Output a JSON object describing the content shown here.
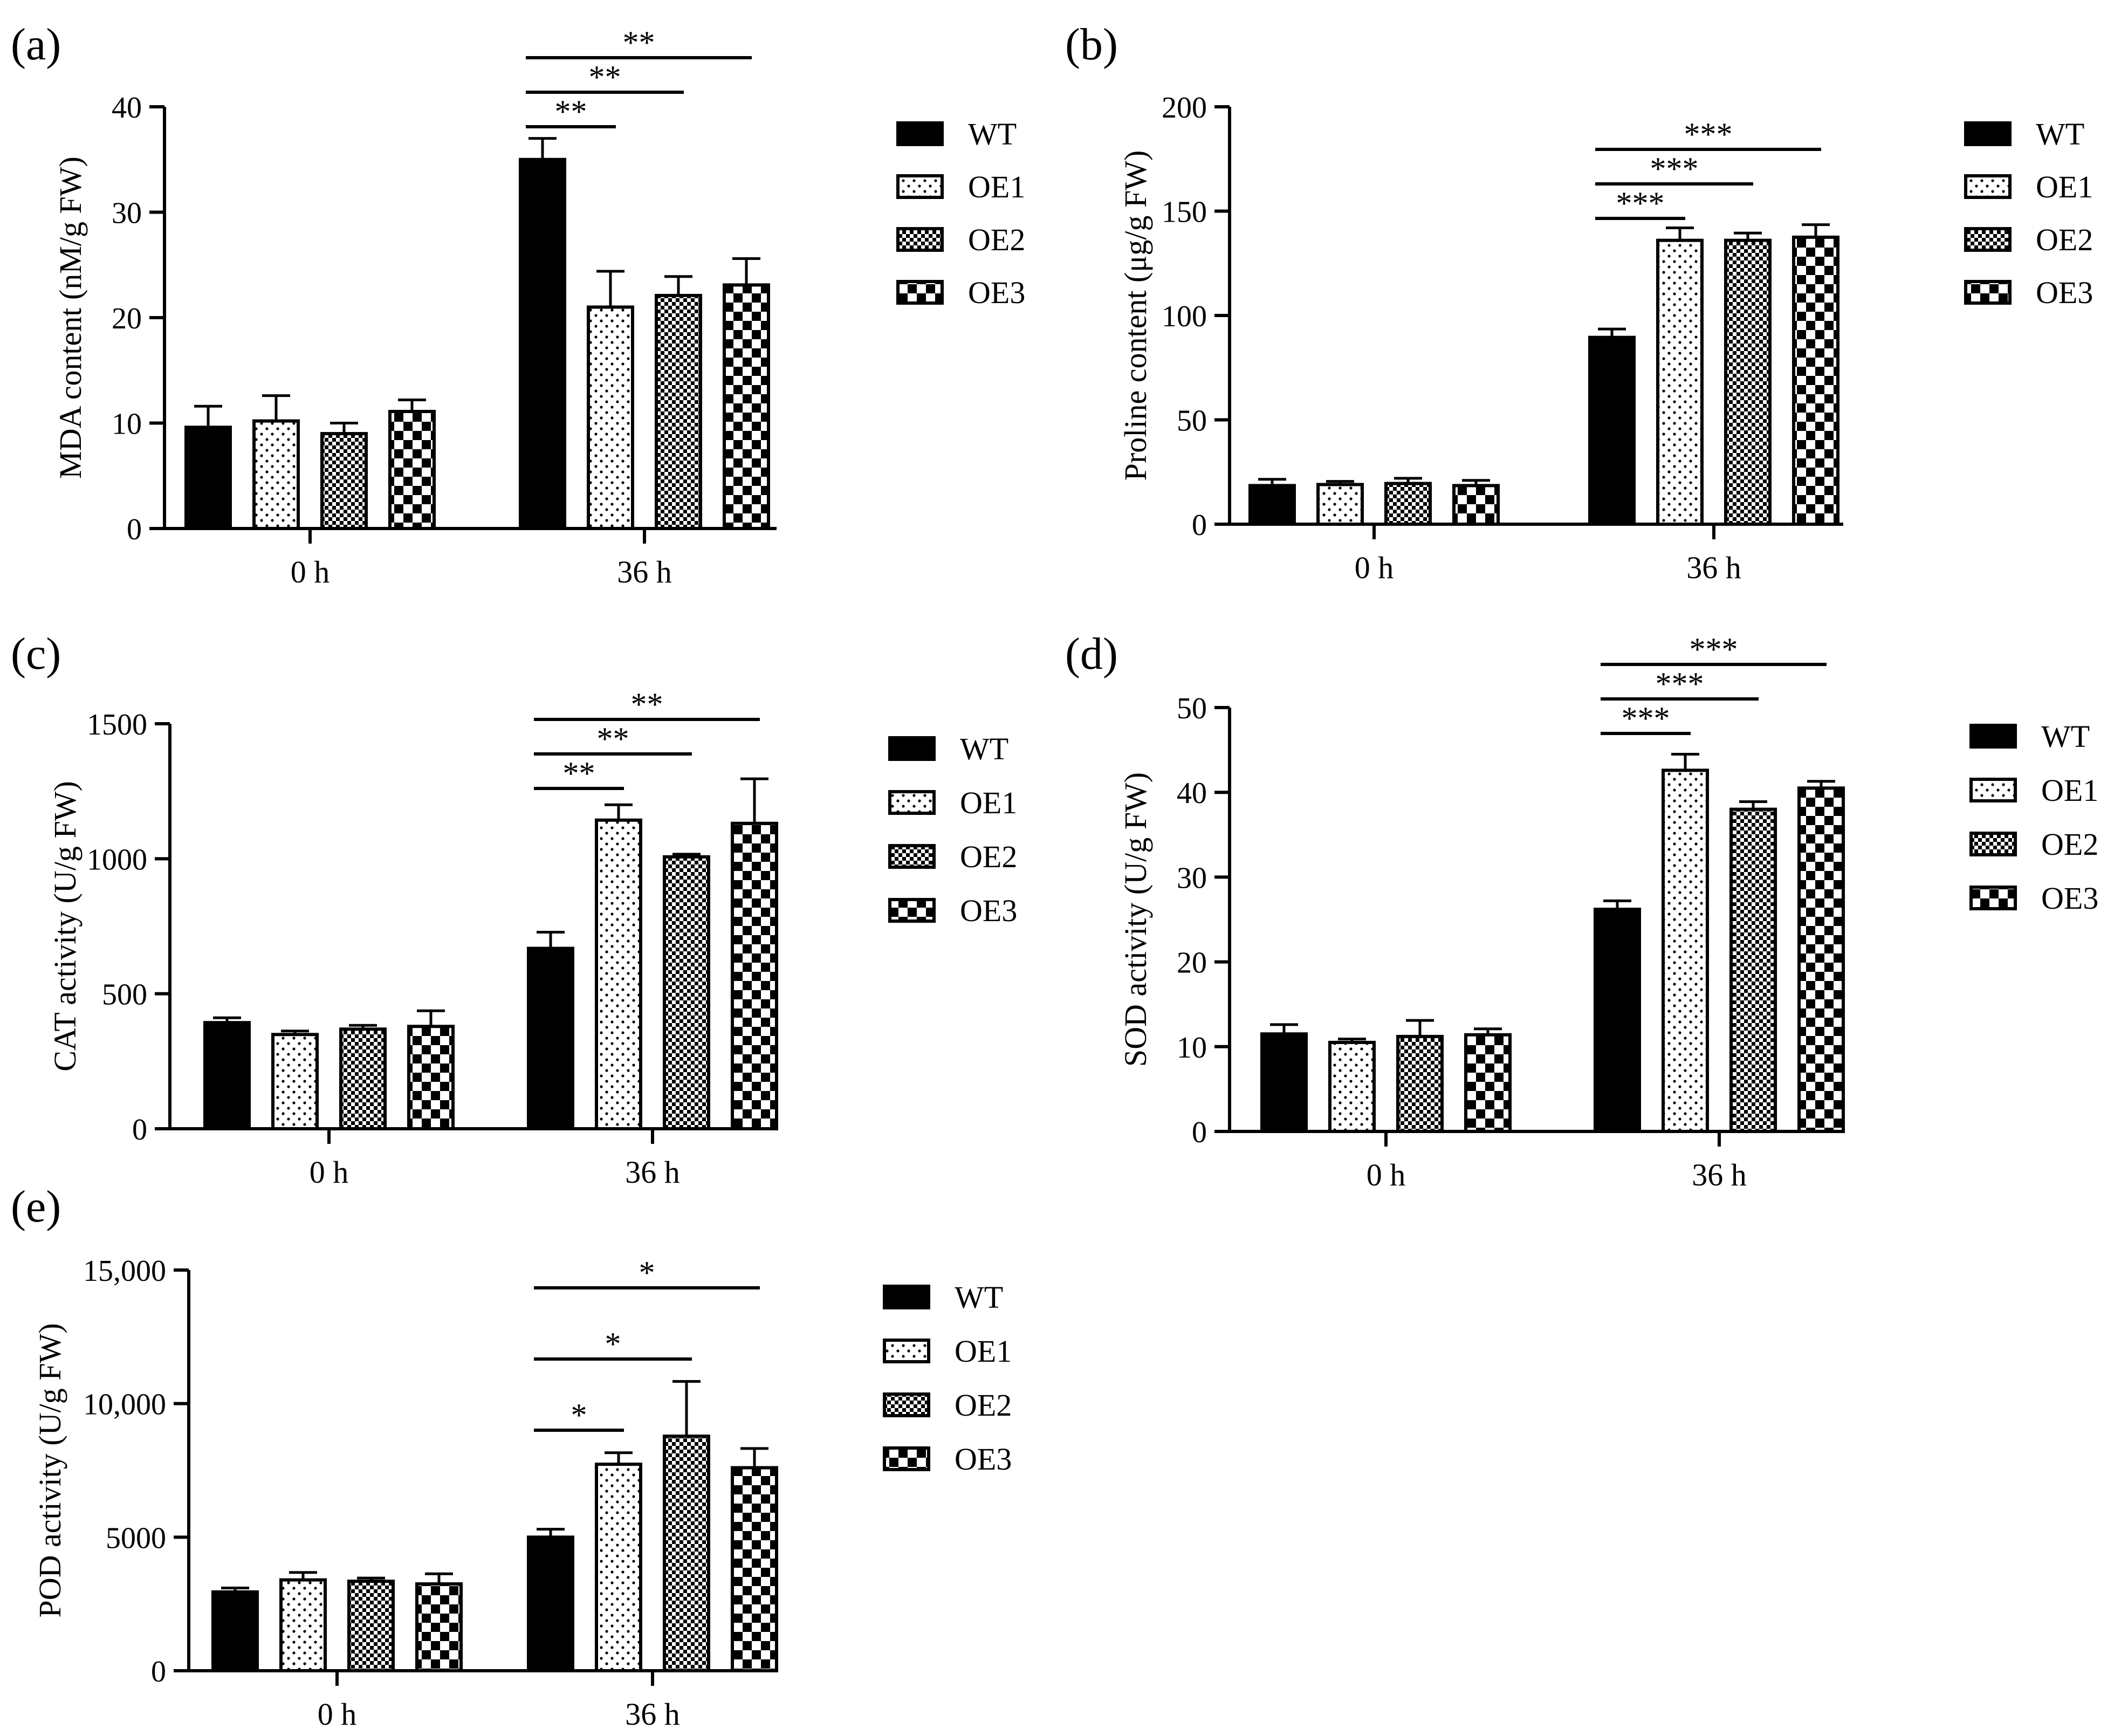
{
  "patterns": {
    "WT": "solid",
    "OE1": "dots",
    "OE2": "fine-checker",
    "OE3": "large-checker"
  },
  "colors": {
    "ink": "#000000",
    "background": "#ffffff"
  },
  "chart_data": [
    {
      "panel": "(a)",
      "type": "bar",
      "categories": [
        "0 h",
        "36 h"
      ],
      "ylabel": "MDA content (nM/g FW)",
      "ylim": [
        0,
        40
      ],
      "yticks": [
        0,
        10,
        20,
        30,
        40
      ],
      "ytick_labels": [
        "0",
        "10",
        "20",
        "30",
        "40"
      ],
      "series": [
        {
          "name": "WT",
          "values": [
            9.6,
            35.0
          ],
          "errors": [
            2.0,
            2.0
          ]
        },
        {
          "name": "OE1",
          "values": [
            10.2,
            21.0
          ],
          "errors": [
            2.4,
            3.4
          ]
        },
        {
          "name": "OE2",
          "values": [
            9.0,
            22.1
          ],
          "errors": [
            1.0,
            1.8
          ]
        },
        {
          "name": "OE3",
          "values": [
            11.1,
            23.1
          ],
          "errors": [
            1.1,
            2.5
          ]
        }
      ],
      "significance": [
        {
          "from": "WT",
          "to": "OE1",
          "label": "**"
        },
        {
          "from": "WT",
          "to": "OE2",
          "label": "**"
        },
        {
          "from": "WT",
          "to": "OE3",
          "label": "**"
        }
      ]
    },
    {
      "panel": "(b)",
      "type": "bar",
      "categories": [
        "0 h",
        "36 h"
      ],
      "ylabel": "Proline content (μg/g FW)",
      "ylim": [
        0,
        200
      ],
      "yticks": [
        0,
        50,
        100,
        150,
        200
      ],
      "ytick_labels": [
        "0",
        "50",
        "100",
        "150",
        "200"
      ],
      "series": [
        {
          "name": "WT",
          "values": [
            18.5,
            89.5
          ],
          "errors": [
            3.0,
            4.0
          ]
        },
        {
          "name": "OE1",
          "values": [
            19.0,
            136.0
          ],
          "errors": [
            1.5,
            6.0
          ]
        },
        {
          "name": "OE2",
          "values": [
            19.5,
            136.0
          ],
          "errors": [
            2.5,
            3.5
          ]
        },
        {
          "name": "OE3",
          "values": [
            18.5,
            137.5
          ],
          "errors": [
            2.5,
            6.0
          ]
        }
      ],
      "significance": [
        {
          "from": "WT",
          "to": "OE1",
          "label": "***"
        },
        {
          "from": "WT",
          "to": "OE2",
          "label": "***"
        },
        {
          "from": "WT",
          "to": "OE3",
          "label": "***"
        }
      ]
    },
    {
      "panel": "(c)",
      "type": "bar",
      "categories": [
        "0 h",
        "36 h"
      ],
      "ylabel": "CAT activity (U/g FW)",
      "ylim": [
        0,
        1500
      ],
      "yticks": [
        0,
        500,
        1000,
        1500
      ],
      "ytick_labels": [
        "0",
        "500",
        "1000",
        "1500"
      ],
      "series": [
        {
          "name": "WT",
          "values": [
            393,
            668
          ],
          "errors": [
            18,
            60
          ]
        },
        {
          "name": "OE1",
          "values": [
            349,
            1143
          ],
          "errors": [
            13,
            57
          ]
        },
        {
          "name": "OE2",
          "values": [
            369,
            1007
          ],
          "errors": [
            14,
            10
          ]
        },
        {
          "name": "OE3",
          "values": [
            379,
            1131
          ],
          "errors": [
            58,
            165
          ]
        }
      ],
      "significance": [
        {
          "from": "WT",
          "to": "OE1",
          "label": "**"
        },
        {
          "from": "WT",
          "to": "OE2",
          "label": "**"
        },
        {
          "from": "WT",
          "to": "OE3",
          "label": "**"
        }
      ]
    },
    {
      "panel": "(d)",
      "type": "bar",
      "categories": [
        "0 h",
        "36 h"
      ],
      "ylabel": "SOD activity (U/g FW)",
      "ylim": [
        0,
        50
      ],
      "yticks": [
        0,
        10,
        20,
        30,
        40,
        50
      ],
      "ytick_labels": [
        "0",
        "10",
        "20",
        "30",
        "40",
        "50"
      ],
      "series": [
        {
          "name": "WT",
          "values": [
            11.5,
            26.2
          ],
          "errors": [
            1.1,
            1.0
          ]
        },
        {
          "name": "OE1",
          "values": [
            10.5,
            42.6
          ],
          "errors": [
            0.4,
            1.9
          ]
        },
        {
          "name": "OE2",
          "values": [
            11.2,
            38.0
          ],
          "errors": [
            1.9,
            0.9
          ]
        },
        {
          "name": "OE3",
          "values": [
            11.4,
            40.5
          ],
          "errors": [
            0.7,
            0.8
          ]
        }
      ],
      "significance": [
        {
          "from": "WT",
          "to": "OE1",
          "label": "***"
        },
        {
          "from": "WT",
          "to": "OE2",
          "label": "***"
        },
        {
          "from": "WT",
          "to": "OE3",
          "label": "***"
        }
      ]
    },
    {
      "panel": "(e)",
      "type": "bar",
      "categories": [
        "0 h",
        "36 h"
      ],
      "ylabel": "POD activity (U/g FW)",
      "ylim": [
        0,
        15000
      ],
      "yticks": [
        0,
        5000,
        10000,
        15000
      ],
      "ytick_labels": [
        "0",
        "5000",
        "10,000",
        "15,000"
      ],
      "series": [
        {
          "name": "WT",
          "values": [
            2950,
            5000
          ],
          "errors": [
            150,
            300
          ]
        },
        {
          "name": "OE1",
          "values": [
            3400,
            7730
          ],
          "errors": [
            280,
            430
          ]
        },
        {
          "name": "OE2",
          "values": [
            3350,
            8780
          ],
          "errors": [
            120,
            2050
          ]
        },
        {
          "name": "OE3",
          "values": [
            3250,
            7600
          ],
          "errors": [
            380,
            720
          ]
        }
      ],
      "significance": [
        {
          "from": "WT",
          "to": "OE1",
          "label": "*"
        },
        {
          "from": "WT",
          "to": "OE2",
          "label": "*"
        },
        {
          "from": "WT",
          "to": "OE3",
          "label": "*"
        }
      ]
    }
  ]
}
